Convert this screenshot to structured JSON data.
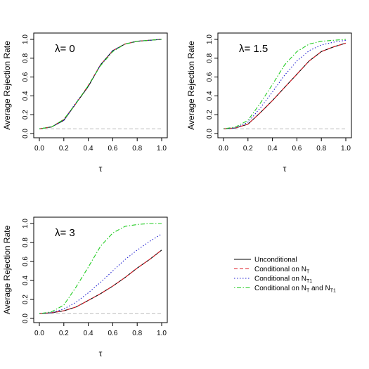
{
  "chart_data": [
    {
      "type": "line",
      "annotation": "λ= 0",
      "xlabel": "τ",
      "ylabel": "Average Rejection Rate",
      "xlim": [
        0,
        1
      ],
      "ylim": [
        0,
        1
      ],
      "x_ticks": [
        "0.0",
        "0.2",
        "0.4",
        "0.6",
        "0.8",
        "1.0"
      ],
      "y_ticks": [
        "0.0",
        "0.2",
        "0.4",
        "0.6",
        "0.8",
        "1.0"
      ],
      "reference_line": 0.05,
      "x": [
        0.0,
        0.1,
        0.2,
        0.3,
        0.4,
        0.5,
        0.6,
        0.7,
        0.8,
        0.9,
        1.0
      ],
      "series": [
        {
          "style": "solid",
          "color": "#000000",
          "values": [
            0.05,
            0.07,
            0.14,
            0.32,
            0.5,
            0.73,
            0.88,
            0.95,
            0.98,
            0.99,
            1.0
          ]
        },
        {
          "style": "dashed",
          "color": "#e0202a",
          "values": [
            0.05,
            0.07,
            0.15,
            0.32,
            0.51,
            0.73,
            0.88,
            0.95,
            0.98,
            0.99,
            1.0
          ]
        },
        {
          "style": "dotted",
          "color": "#2020d0",
          "values": [
            0.05,
            0.07,
            0.14,
            0.33,
            0.5,
            0.73,
            0.88,
            0.95,
            0.98,
            0.99,
            1.0
          ]
        },
        {
          "style": "dotdash",
          "color": "#22cc22",
          "values": [
            0.05,
            0.07,
            0.15,
            0.32,
            0.51,
            0.72,
            0.87,
            0.95,
            0.98,
            0.99,
            1.0
          ]
        }
      ]
    },
    {
      "type": "line",
      "annotation": "λ= 1.5",
      "xlabel": "τ",
      "ylabel": "Average Rejection Rate",
      "xlim": [
        0,
        1
      ],
      "ylim": [
        0,
        1
      ],
      "x_ticks": [
        "0.0",
        "0.2",
        "0.4",
        "0.6",
        "0.8",
        "1.0"
      ],
      "y_ticks": [
        "0.0",
        "0.2",
        "0.4",
        "0.6",
        "0.8",
        "1.0"
      ],
      "reference_line": 0.05,
      "x": [
        0.0,
        0.1,
        0.2,
        0.3,
        0.4,
        0.5,
        0.6,
        0.7,
        0.8,
        0.9,
        1.0
      ],
      "series": [
        {
          "style": "solid",
          "color": "#000000",
          "values": [
            0.05,
            0.06,
            0.1,
            0.22,
            0.35,
            0.49,
            0.63,
            0.77,
            0.87,
            0.92,
            0.96
          ]
        },
        {
          "style": "dashed",
          "color": "#e0202a",
          "values": [
            0.05,
            0.06,
            0.1,
            0.22,
            0.35,
            0.49,
            0.63,
            0.77,
            0.87,
            0.92,
            0.96
          ]
        },
        {
          "style": "dotted",
          "color": "#2020d0",
          "values": [
            0.05,
            0.06,
            0.12,
            0.27,
            0.44,
            0.62,
            0.77,
            0.88,
            0.94,
            0.97,
            0.99
          ]
        },
        {
          "style": "dotdash",
          "color": "#22cc22",
          "values": [
            0.05,
            0.07,
            0.14,
            0.32,
            0.52,
            0.73,
            0.87,
            0.95,
            0.98,
            0.99,
            1.0
          ]
        }
      ]
    },
    {
      "type": "line",
      "annotation": "λ= 3",
      "xlabel": "τ",
      "ylabel": "Average Rejection Rate",
      "xlim": [
        0,
        1
      ],
      "ylim": [
        0,
        1
      ],
      "x_ticks": [
        "0.0",
        "0.2",
        "0.4",
        "0.6",
        "0.8",
        "1.0"
      ],
      "y_ticks": [
        "0.0",
        "0.2",
        "0.4",
        "0.6",
        "0.8",
        "1.0"
      ],
      "reference_line": 0.05,
      "x": [
        0.0,
        0.1,
        0.2,
        0.3,
        0.4,
        0.5,
        0.6,
        0.7,
        0.8,
        0.9,
        1.0
      ],
      "series": [
        {
          "style": "solid",
          "color": "#000000",
          "values": [
            0.05,
            0.06,
            0.08,
            0.12,
            0.19,
            0.26,
            0.34,
            0.43,
            0.53,
            0.62,
            0.72
          ]
        },
        {
          "style": "dashed",
          "color": "#e0202a",
          "values": [
            0.05,
            0.06,
            0.08,
            0.12,
            0.19,
            0.26,
            0.34,
            0.43,
            0.53,
            0.62,
            0.72
          ]
        },
        {
          "style": "dotted",
          "color": "#2020d0",
          "values": [
            0.05,
            0.06,
            0.1,
            0.17,
            0.27,
            0.38,
            0.5,
            0.62,
            0.72,
            0.81,
            0.89
          ]
        },
        {
          "style": "dotdash",
          "color": "#22cc22",
          "values": [
            0.05,
            0.07,
            0.14,
            0.33,
            0.54,
            0.76,
            0.9,
            0.97,
            0.99,
            1.0,
            1.0
          ]
        }
      ]
    }
  ],
  "legend": {
    "placement": "bottom-right",
    "entries": [
      {
        "label": "Unconditional",
        "style": "solid",
        "color": "#000000"
      },
      {
        "label": "Conditional on N",
        "sub": "T",
        "after": "",
        "style": "dashed",
        "color": "#e0202a"
      },
      {
        "label": "Conditional on N",
        "sub": "T1",
        "after": "",
        "style": "dotted",
        "color": "#2020d0"
      },
      {
        "label": "Conditional on N",
        "sub": "T",
        "after": " and N",
        "sub2": "T1",
        "style": "dotdash",
        "color": "#22cc22"
      }
    ]
  }
}
